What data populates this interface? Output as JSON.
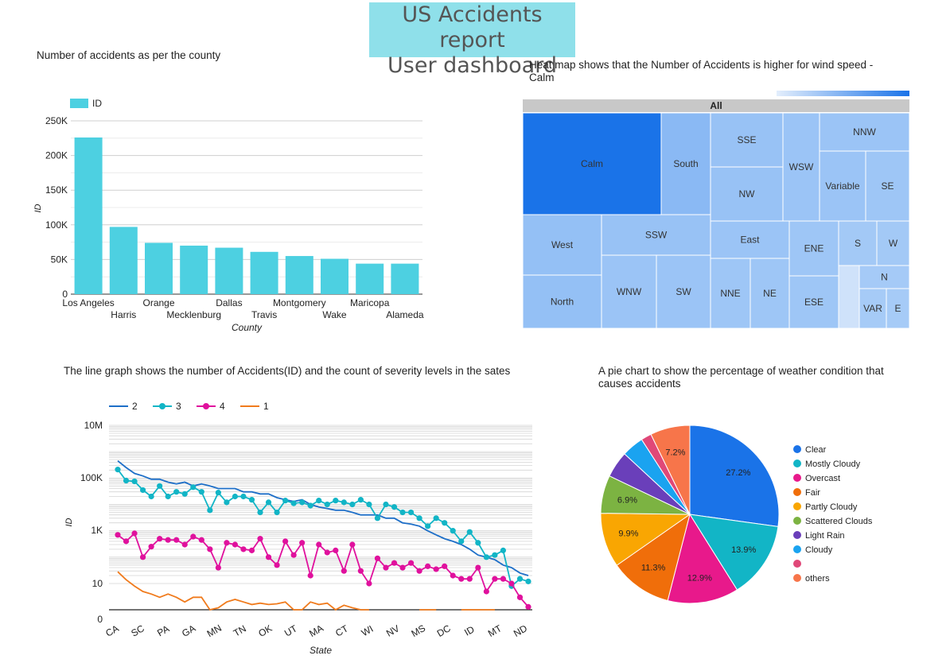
{
  "report_title": {
    "line1": "US Accidents report",
    "line2": "User dashboard"
  },
  "colors": {
    "title_bg": "#8fe0ea",
    "bar": "#4dd0e1",
    "heat_dark": "#1a73e8",
    "heat_light": "#a9cdf7",
    "s2": "#1e6fc8",
    "s3": "#12b5c6",
    "s4": "#e0119d",
    "s1": "#f07b1d"
  },
  "panels": {
    "bar": "Number of accidents as per the county",
    "heat_line1": "Heat map shows that the Number of Accidents is higher for wind speed -",
    "heat_line2": "Calm",
    "line": "The line graph shows the number of Accidents(ID) and the count of severity levels in the sates",
    "pie_line1": "A pie chart to show the percentage of weather condition that",
    "pie_line2": "causes accidents"
  },
  "chart_data": [
    {
      "type": "bar",
      "categories": [
        "Los Angeles",
        "Harris",
        "Orange",
        "Mecklenburg",
        "Dallas",
        "Travis",
        "Montgomery",
        "Wake",
        "Maricopa",
        "Alameda"
      ],
      "values": [
        226000,
        97000,
        74000,
        70000,
        67000,
        61000,
        55000,
        51000,
        44000,
        44000
      ],
      "legend": "ID",
      "xlabel": "County",
      "ylabel": "ID",
      "ylim": [
        0,
        250000
      ],
      "yticks": [
        "0",
        "50K",
        "100K",
        "150K",
        "200K",
        "250K"
      ],
      "grid": true,
      "legend_position": "top-left"
    },
    {
      "type": "heatmap",
      "header": "All",
      "items": [
        {
          "label": "Calm",
          "level": 1.0
        },
        {
          "label": "South",
          "level": 0.22
        },
        {
          "label": "SSE",
          "level": 0.12
        },
        {
          "label": "NW",
          "level": 0.12
        },
        {
          "label": "WSW",
          "level": 0.1
        },
        {
          "label": "NNW",
          "level": 0.1
        },
        {
          "label": "Variable",
          "level": 0.1
        },
        {
          "label": "SE",
          "level": 0.08
        },
        {
          "label": "West",
          "level": 0.15
        },
        {
          "label": "SSW",
          "level": 0.12
        },
        {
          "label": "North",
          "level": 0.15
        },
        {
          "label": "WNW",
          "level": 0.1
        },
        {
          "label": "SW",
          "level": 0.1
        },
        {
          "label": "East",
          "level": 0.1
        },
        {
          "label": "NNE",
          "level": 0.08
        },
        {
          "label": "NE",
          "level": 0.08
        },
        {
          "label": "ENE",
          "level": 0.08
        },
        {
          "label": "ESE",
          "level": 0.08
        },
        {
          "label": "S",
          "level": 0.04
        },
        {
          "label": "W",
          "level": 0.04
        },
        {
          "label": "N",
          "level": 0.03
        },
        {
          "label": "VAR",
          "level": 0.02
        },
        {
          "label": "E",
          "level": 0.02
        }
      ]
    },
    {
      "type": "line",
      "xlabel": "State",
      "ylabel": "ID",
      "yscale": "log",
      "yticks": [
        "0",
        "10",
        "1K",
        "100K",
        "10M"
      ],
      "xtick_labels": [
        "CA",
        "SC",
        "PA",
        "GA",
        "MN",
        "TN",
        "OK",
        "UT",
        "MA",
        "CT",
        "WI",
        "NV",
        "MS",
        "DC",
        "ID",
        "MT",
        "ND"
      ],
      "legend_position": "top-left",
      "series": [
        {
          "name": "2",
          "markers": false,
          "values": [
            450000,
            250000,
            150000,
            120000,
            90000,
            90000,
            70000,
            60000,
            70000,
            50000,
            60000,
            50000,
            40000,
            40000,
            40000,
            30000,
            30000,
            25000,
            25000,
            18000,
            15000,
            13000,
            15000,
            10000,
            8000,
            7000,
            6000,
            6000,
            5000,
            4000,
            4000,
            4000,
            3000,
            3000,
            2000,
            1800,
            1500,
            1000,
            700,
            500,
            400,
            300,
            200,
            120,
            100,
            80,
            50,
            40,
            25,
            20
          ]
        },
        {
          "name": "3",
          "markers": true,
          "values": [
            210000,
            80000,
            75000,
            35000,
            20000,
            50000,
            20000,
            30000,
            25000,
            45000,
            30000,
            6000,
            28000,
            12000,
            20000,
            20000,
            15000,
            5000,
            12000,
            5000,
            14000,
            11000,
            12000,
            9000,
            14000,
            10000,
            14000,
            12000,
            10000,
            15000,
            10000,
            3000,
            10000,
            8000,
            5000,
            5000,
            3000,
            1500,
            3000,
            2000,
            1000,
            400,
            900,
            350,
            100,
            120,
            180,
            8,
            15,
            12
          ]
        },
        {
          "name": "4",
          "markers": true,
          "values": [
            700,
            400,
            800,
            100,
            250,
            500,
            450,
            450,
            300,
            600,
            450,
            200,
            40,
            350,
            300,
            200,
            180,
            500,
            100,
            50,
            400,
            120,
            350,
            20,
            300,
            150,
            180,
            30,
            300,
            30,
            10,
            90,
            40,
            60,
            40,
            60,
            30,
            45,
            35,
            45,
            20,
            15,
            15,
            40,
            5,
            15,
            15,
            10,
            3,
            1.3
          ]
        },
        {
          "name": "1",
          "markers": false,
          "values": [
            28,
            14,
            8,
            5,
            4,
            3,
            4,
            3,
            2,
            3,
            3,
            0.6,
            1.2,
            2,
            2.5,
            2,
            1.6,
            1.8,
            1.6,
            1.7,
            2,
            0.8,
            1,
            2,
            1.6,
            1.8,
            1,
            1.5,
            1.2,
            1,
            0.3,
            null,
            null,
            null,
            null,
            null,
            0.5,
            0.2,
            0.3,
            null,
            null,
            0.25,
            0.5,
            0.2,
            0.2,
            0.2,
            null,
            0.2,
            null,
            null
          ]
        }
      ]
    },
    {
      "type": "pie",
      "slices": [
        {
          "label": "Clear",
          "value": 27.2,
          "color": "#1a73e8",
          "show_label": true
        },
        {
          "label": "Mostly Cloudy",
          "value": 13.9,
          "color": "#12b5c6",
          "show_label": true
        },
        {
          "label": "Overcast",
          "value": 12.9,
          "color": "#e8198b",
          "show_label": true
        },
        {
          "label": "Fair",
          "value": 11.3,
          "color": "#f06e0a",
          "show_label": true
        },
        {
          "label": "Partly Cloudy",
          "value": 9.9,
          "color": "#f9a602",
          "show_label": true
        },
        {
          "label": "Scattered Clouds",
          "value": 6.9,
          "color": "#7cb342",
          "show_label": true
        },
        {
          "label": "Light Rain",
          "value": 4.8,
          "color": "#6a3fba",
          "show_label": false
        },
        {
          "label": "Cloudy",
          "value": 4.0,
          "color": "#1aa3f0",
          "show_label": false
        },
        {
          "label": "",
          "value": 1.9,
          "color": "#e04878",
          "show_label": false
        },
        {
          "label": "others",
          "value": 7.2,
          "color": "#f7754a",
          "show_label": true
        }
      ],
      "legend_position": "right"
    }
  ]
}
